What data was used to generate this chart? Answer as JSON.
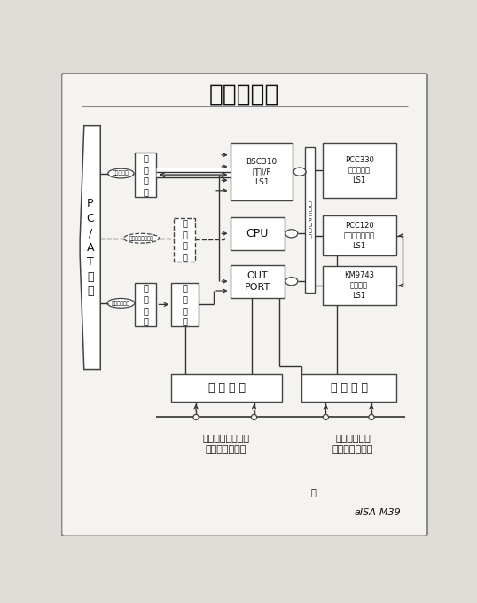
{
  "title": "ブロック図",
  "bg_color": "#e0ddd8",
  "inner_bg": "#f5f3ef",
  "border_color": "#444444",
  "box_color": "#ffffff",
  "line_color": "#333333",
  "text_color": "#111111",
  "pc_at_bus_text": "P\nC\n/\nA\nT\nバ\nス",
  "data_bus_label": "データバス",
  "control_bus_label": "コントロールバス",
  "address_bus_label": "アドレスバス",
  "buffer1_label": "バッファ",
  "buffer2_label": "バッファ",
  "buffer3_label": "バッファ",
  "decoder_label": "デコーダ",
  "bsc310_label": "BSC310\nバスI/F\nLS1",
  "cpu_label": "CPU",
  "outport_label": "OUT\nPORT",
  "internal_bus_label": "内部CPUバス",
  "pcc330_label": "PCC330\n位置数現化\nLS1",
  "pcc120_label": "PCC120\nパルスカウンタ\nLS1",
  "km9743_label": "KM9743\n励磁駆動\nLS1",
  "nyuryoku_label": "入 力 回 路",
  "shutsuryoku_label": "出 力 回 路",
  "limit_label": "リミット，原点，\n汎用入力信号等",
  "pulse_label": "パルス出力，\n汎用出力信号等",
  "model_label": "aISA-M39",
  "note_label": "注"
}
